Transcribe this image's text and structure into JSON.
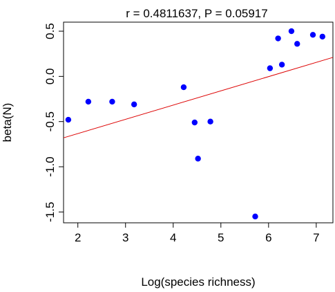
{
  "chart_data": {
    "type": "scatter",
    "title": "r = 0.4811637, P = 0.05917",
    "xlabel": "Log(species richness)",
    "ylabel": "beta(N)",
    "xlim": [
      1.7,
      7.35
    ],
    "ylim": [
      -1.62,
      0.6
    ],
    "x_ticks": [
      2,
      3,
      4,
      5,
      6,
      7
    ],
    "x_tick_labels": [
      "2",
      "3",
      "4",
      "5",
      "6",
      "7"
    ],
    "y_ticks": [
      -1.5,
      -1.0,
      -0.5,
      0.0,
      0.5
    ],
    "y_tick_labels": [
      "-1.5",
      "-1.0",
      "-0.5",
      "0.0",
      "0.5"
    ],
    "grid": false,
    "point_color": "#0000ff",
    "line_color": "#dd0000",
    "points": [
      {
        "x": 1.8,
        "y": -0.48
      },
      {
        "x": 2.22,
        "y": -0.28
      },
      {
        "x": 2.72,
        "y": -0.28
      },
      {
        "x": 3.18,
        "y": -0.31
      },
      {
        "x": 4.22,
        "y": -0.12
      },
      {
        "x": 4.45,
        "y": -0.51
      },
      {
        "x": 4.52,
        "y": -0.91
      },
      {
        "x": 4.78,
        "y": -0.5
      },
      {
        "x": 5.72,
        "y": -1.55
      },
      {
        "x": 6.03,
        "y": 0.09
      },
      {
        "x": 6.2,
        "y": 0.42
      },
      {
        "x": 6.28,
        "y": 0.13
      },
      {
        "x": 6.48,
        "y": 0.5
      },
      {
        "x": 6.6,
        "y": 0.36
      },
      {
        "x": 6.93,
        "y": 0.46
      },
      {
        "x": 7.13,
        "y": 0.44
      }
    ],
    "fit_line": {
      "x": [
        1.7,
        7.35
      ],
      "y": [
        -0.68,
        0.21
      ]
    }
  }
}
